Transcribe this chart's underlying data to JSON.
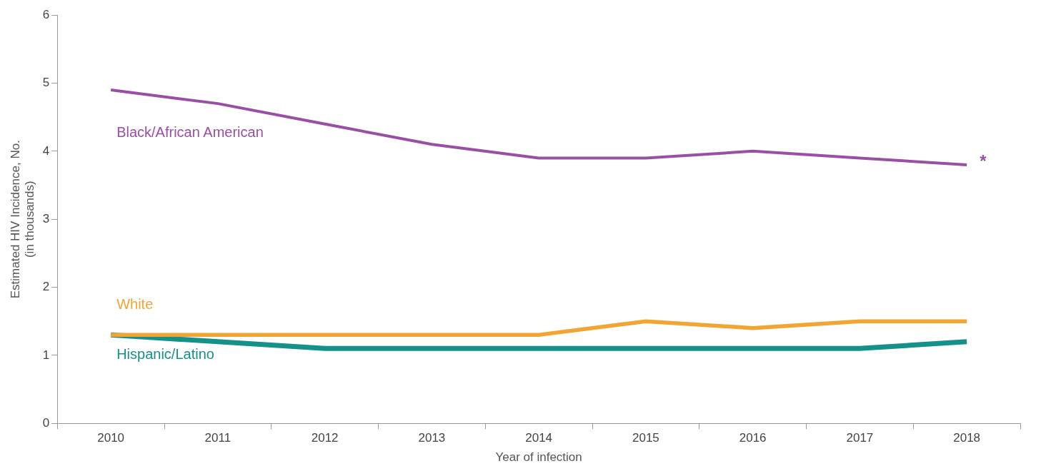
{
  "chart_data": {
    "type": "line",
    "xlabel": "Year of infection",
    "ylabel": "Estimated HIV Incidence, No.\n(in thousands)",
    "categories": [
      "2010",
      "2011",
      "2012",
      "2013",
      "2014",
      "2015",
      "2016",
      "2017",
      "2018"
    ],
    "series": [
      {
        "name": "Black/African American",
        "color": "#9a4ea6",
        "values": [
          4.9,
          4.7,
          4.4,
          4.1,
          3.9,
          3.9,
          4.0,
          3.9,
          3.8
        ]
      },
      {
        "name": "White",
        "color": "#f3a533",
        "values": [
          1.3,
          1.3,
          1.3,
          1.3,
          1.3,
          1.5,
          1.4,
          1.5,
          1.5
        ]
      },
      {
        "name": "Hispanic/Latino",
        "color": "#16918a",
        "values": [
          1.3,
          1.2,
          1.1,
          1.1,
          1.1,
          1.1,
          1.1,
          1.1,
          1.2
        ]
      }
    ],
    "ylim": [
      0,
      6
    ],
    "yticks": [
      0,
      1,
      2,
      3,
      4,
      5,
      6
    ],
    "annotations": [
      {
        "text": "*",
        "x": "2018",
        "y": 3.8
      }
    ],
    "grid": false,
    "legend": false,
    "marker": "none",
    "line_style": "solid"
  }
}
